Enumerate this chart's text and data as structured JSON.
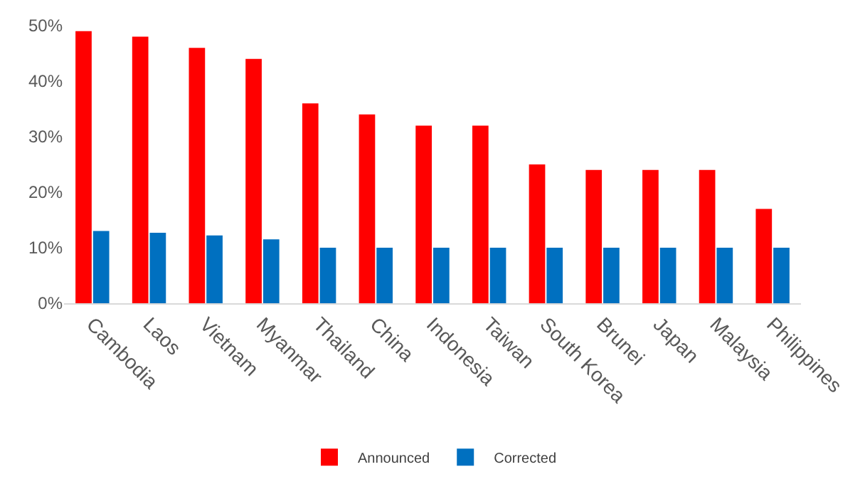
{
  "chart_data": {
    "type": "bar",
    "categories": [
      "Cambodia",
      "Laos",
      "Vietnam",
      "Myanmar",
      "Thailand",
      "China",
      "Indonesia",
      "Taiwan",
      "South Korea",
      "Brunei",
      "Japan",
      "Malaysia",
      "Philippines"
    ],
    "series": [
      {
        "name": "Announced",
        "color": "#ff0000",
        "values": [
          49,
          48,
          46,
          44,
          36,
          34,
          32,
          32,
          25,
          24,
          24,
          24,
          17
        ]
      },
      {
        "name": "Corrected",
        "color": "#0070c0",
        "values": [
          13,
          12.7,
          12.2,
          11.5,
          10,
          10,
          10,
          10,
          10,
          10,
          10,
          10,
          10
        ]
      }
    ],
    "ylim": [
      0,
      50
    ],
    "yticks": [
      {
        "value": 0,
        "label": "0%"
      },
      {
        "value": 10,
        "label": "10%"
      },
      {
        "value": 20,
        "label": "20%"
      },
      {
        "value": 30,
        "label": "30%"
      },
      {
        "value": 40,
        "label": "40%"
      },
      {
        "value": 50,
        "label": "50%"
      }
    ],
    "grid": false,
    "legend": "bottom"
  }
}
